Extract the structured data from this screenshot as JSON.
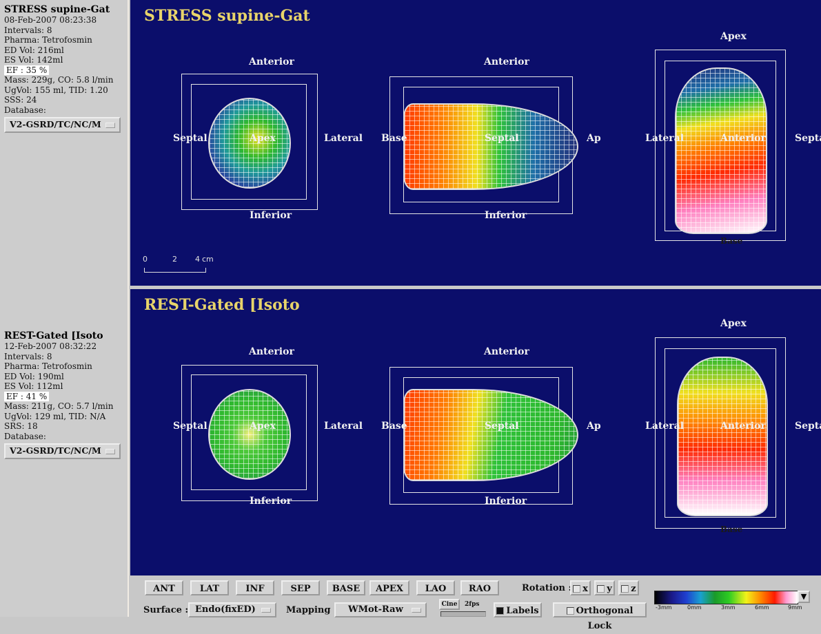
{
  "stress_info": {
    "title": "STRESS supine-Gat",
    "date": "08-Feb-2007 08:23:38",
    "intervals": "Intervals: 8",
    "pharma": "Pharma: Tetrofosmin",
    "ed_vol": "ED Vol:  216ml",
    "es_vol": "ES Vol:  142ml",
    "ef": "EF  : 35 %",
    "mass": "Mass: 229g, CO: 5.8 l/min",
    "ugvol": "UgVol:  155 ml,  TID: 1.20",
    "score": "SSS: 24",
    "database_label": "Database:",
    "database_value": "V2-GSRD/TC/NC/M"
  },
  "rest_info": {
    "title": "REST-Gated [Isoto",
    "date": "12-Feb-2007 08:32:22",
    "intervals": "Intervals: 8",
    "pharma": "Pharma: Tetrofosmin",
    "ed_vol": "ED Vol:  190ml",
    "es_vol": "ES Vol:  112ml",
    "ef": "EF  : 41 %",
    "mass": "Mass: 211g, CO: 5.7 l/min",
    "ugvol": "UgVol:  129 ml,  TID: N/A",
    "score": "SRS: 18",
    "database_label": "Database:",
    "database_value": "V2-GSRD/TC/NC/M"
  },
  "panels": {
    "stress_title": "STRESS supine-Gat",
    "rest_title": "REST-Gated [Isoto"
  },
  "labels": {
    "anterior": "Anterior",
    "inferior": "Inferior",
    "septal": "Septal",
    "apex": "Apex",
    "lateral": "Lateral",
    "base": "Base",
    "ap_cut": "Ap",
    "lateral_cut": "Lateral",
    "septal_cut": "Septa",
    "apex_top": "Apex",
    "base_bottom": "Base"
  },
  "scale": {
    "t0": "0",
    "t2": "2",
    "t4": "4",
    "unit": "cm"
  },
  "toolbar": {
    "view_buttons": [
      "ANT",
      "LAT",
      "INF",
      "SEP",
      "BASE",
      "APEX",
      "LAO",
      "RAO"
    ],
    "rotation_label": "Rotation :",
    "rot_x": "x",
    "rot_y": "y",
    "rot_z": "z",
    "surface_label": "Surface :",
    "surface_value": "Endo(fixED)",
    "mapping_label": "Mapping :",
    "mapping_value": "WMot-Raw",
    "cine_label": "Cine",
    "cine_rate": "2fps",
    "labels_toggle": "Labels",
    "ortho_toggle": "Orthogonal Lock",
    "colorbar_ticks": [
      "-3mm",
      "0mm",
      "3mm",
      "6mm",
      "9mm"
    ]
  }
}
